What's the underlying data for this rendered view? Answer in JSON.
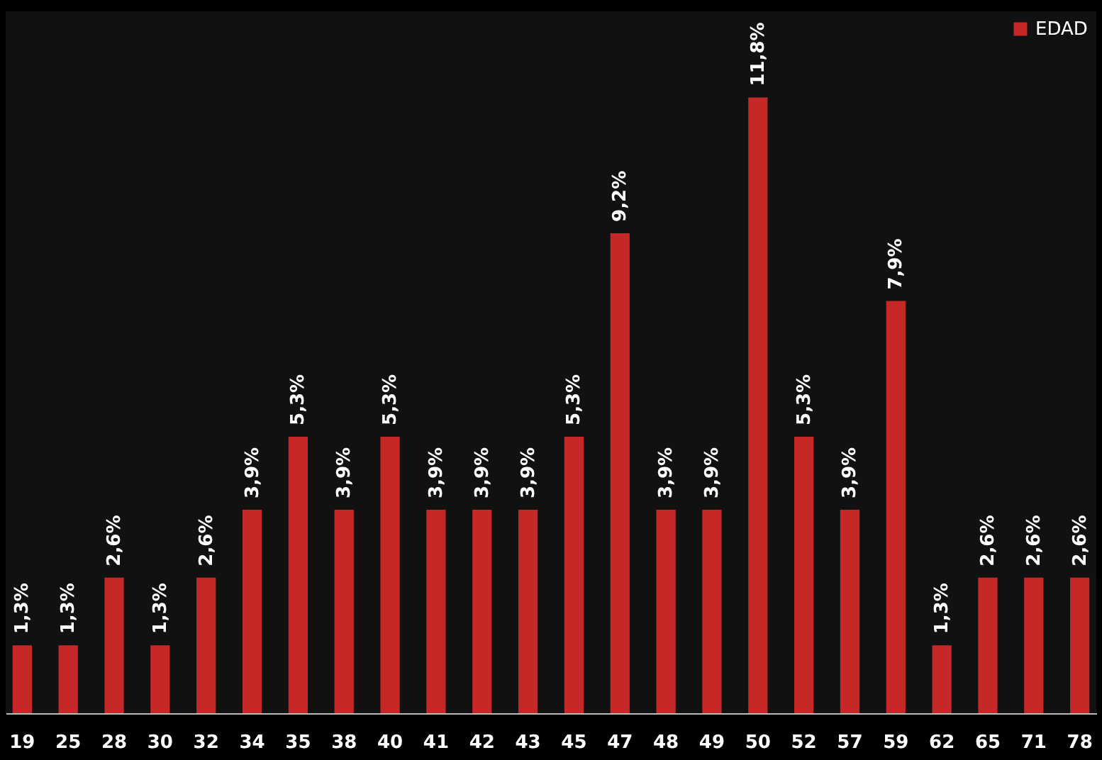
{
  "chart_data": {
    "type": "bar",
    "categories": [
      "19",
      "25",
      "28",
      "30",
      "32",
      "34",
      "35",
      "38",
      "40",
      "41",
      "42",
      "43",
      "45",
      "47",
      "48",
      "49",
      "50",
      "52",
      "57",
      "59",
      "62",
      "65",
      "71",
      "78"
    ],
    "series": [
      {
        "name": "EDAD",
        "color": "#c62828",
        "values": [
          1.3,
          1.3,
          2.6,
          1.3,
          2.6,
          3.9,
          5.3,
          3.9,
          5.3,
          3.9,
          3.9,
          3.9,
          5.3,
          9.2,
          3.9,
          3.9,
          11.8,
          5.3,
          3.9,
          7.9,
          1.3,
          2.6,
          2.6,
          2.6
        ],
        "value_labels": [
          "1,3%",
          "1,3%",
          "2,6%",
          "1,3%",
          "2,6%",
          "3,9%",
          "5,3%",
          "3,9%",
          "5,3%",
          "3,9%",
          "3,9%",
          "3,9%",
          "5,3%",
          "9,2%",
          "3,9%",
          "3,9%",
          "11,8%",
          "5,3%",
          "3,9%",
          "7,9%",
          "1,3%",
          "2,6%",
          "2,6%",
          "2,6%"
        ]
      }
    ],
    "legend": "top right"
  }
}
